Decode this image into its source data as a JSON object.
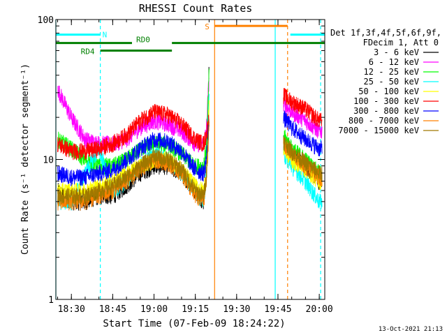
{
  "chart_data": {
    "type": "line",
    "title": "RHESSI Count Rates",
    "xlabel": "Start Time (07-Feb-09 18:24:22)",
    "ylabel": "Count Rate (s⁻¹ detector segment⁻¹)",
    "y_scale": "log",
    "ylim": [
      1,
      100
    ],
    "xlim": [
      "18:24:22",
      "20:02:00"
    ],
    "x_ticks": [
      "18:30",
      "18:45",
      "19:00",
      "19:15",
      "19:30",
      "19:45",
      "20:00"
    ],
    "y_ticks": [
      "1",
      "10",
      "100"
    ],
    "legend_position": "right",
    "legend_header": [
      "Det 1f,3f,4f,5f,6f,9f,",
      "FDecim 1, Att 0"
    ],
    "series": [
      {
        "name": "3 - 6 keV",
        "color": "#000000",
        "x": [
          "18:25",
          "18:30",
          "18:35",
          "18:40",
          "18:45",
          "18:50",
          "18:55",
          "19:00",
          "19:05",
          "19:10",
          "19:15",
          "19:18",
          "19:19",
          "19:20",
          "19:47",
          "19:50",
          "19:55",
          "20:00"
        ],
        "y": [
          6,
          5,
          5,
          5.5,
          5.5,
          6.5,
          8,
          9,
          9,
          8,
          6,
          5,
          9,
          45,
          14,
          11,
          9,
          7
        ]
      },
      {
        "name": "6 - 12 keV",
        "color": "#ff00ff",
        "x": [
          "18:25",
          "18:30",
          "18:35",
          "18:40",
          "18:45",
          "18:50",
          "18:55",
          "19:00",
          "19:05",
          "19:10",
          "19:15",
          "19:18",
          "19:19",
          "19:20",
          "19:47",
          "19:50",
          "19:55",
          "20:00"
        ],
        "y": [
          32,
          20,
          14,
          13,
          13,
          14,
          17,
          19,
          18,
          16,
          13,
          13,
          16,
          40,
          25,
          22,
          19,
          16
        ]
      },
      {
        "name": "12 - 25 keV",
        "color": "#00ff00",
        "x": [
          "18:25",
          "18:30",
          "18:35",
          "18:40",
          "18:45",
          "18:50",
          "18:55",
          "19:00",
          "19:05",
          "19:10",
          "19:15",
          "19:18",
          "19:19",
          "19:20",
          "19:47",
          "19:50",
          "19:55",
          "20:00"
        ],
        "y": [
          14,
          12,
          10,
          9,
          9,
          10,
          12,
          13,
          13,
          11,
          9,
          9,
          12,
          40,
          15,
          12,
          10,
          8
        ]
      },
      {
        "name": "25 - 50 keV",
        "color": "#00ffff",
        "x": [
          "18:25",
          "18:30",
          "18:35",
          "18:40",
          "18:45",
          "18:50",
          "18:55",
          "19:00",
          "19:05",
          "19:10",
          "19:15",
          "19:18",
          "19:19",
          "19:20",
          "19:47",
          "19:50",
          "19:55",
          "20:00"
        ],
        "y": [
          5,
          5,
          8,
          12,
          6,
          7,
          9,
          11,
          10,
          8,
          6,
          5,
          8,
          30,
          11,
          9,
          7,
          5
        ]
      },
      {
        "name": "50 - 100 keV",
        "color": "#ffff00",
        "x": [
          "18:25",
          "18:30",
          "18:35",
          "18:40",
          "18:45",
          "18:50",
          "18:55",
          "19:00",
          "19:05",
          "19:10",
          "19:15",
          "19:18",
          "19:19",
          "19:20",
          "19:47",
          "19:50",
          "19:55",
          "20:00"
        ],
        "y": [
          6,
          6,
          6,
          6.5,
          7,
          8,
          9,
          10,
          10,
          8.5,
          6.5,
          6,
          8,
          25,
          12,
          10,
          8.5,
          7
        ]
      },
      {
        "name": "100 - 300 keV",
        "color": "#ff0000",
        "x": [
          "18:25",
          "18:30",
          "18:35",
          "18:40",
          "18:45",
          "18:50",
          "18:55",
          "19:00",
          "19:05",
          "19:10",
          "19:15",
          "19:18",
          "19:19",
          "19:20",
          "19:47",
          "19:50",
          "19:55",
          "20:00"
        ],
        "y": [
          13,
          11.5,
          11.5,
          12,
          13,
          15,
          19,
          22,
          21,
          18,
          14,
          13,
          15,
          20,
          29,
          26,
          23,
          19
        ]
      },
      {
        "name": "300 - 800 keV",
        "color": "#0000ff",
        "x": [
          "18:25",
          "18:30",
          "18:35",
          "18:40",
          "18:45",
          "18:50",
          "18:55",
          "19:00",
          "19:05",
          "19:10",
          "19:15",
          "19:18",
          "19:19",
          "19:20",
          "19:47",
          "19:50",
          "19:55",
          "20:00"
        ],
        "y": [
          8,
          7.5,
          7.5,
          8,
          8.5,
          10,
          12,
          14,
          13.5,
          11.5,
          8.5,
          8,
          10,
          20,
          20,
          17,
          14,
          12
        ]
      },
      {
        "name": "800 - 7000 keV",
        "color": "#ff8000",
        "x": [
          "18:25",
          "18:30",
          "18:35",
          "18:40",
          "18:45",
          "18:50",
          "18:55",
          "19:00",
          "19:05",
          "19:10",
          "19:15",
          "19:18",
          "19:19",
          "19:20",
          "19:47",
          "19:50",
          "19:55",
          "20:00"
        ],
        "y": [
          5,
          5,
          5,
          5.5,
          6,
          7,
          8.5,
          10,
          9.5,
          8,
          5.5,
          5,
          7,
          18,
          13,
          11,
          9,
          7.5
        ]
      },
      {
        "name": "7000 - 15000 keV",
        "color": "#a07800",
        "x": [
          "18:25",
          "18:30",
          "18:35",
          "18:40",
          "18:45",
          "18:50",
          "18:55",
          "19:00",
          "19:05",
          "19:10",
          "19:15",
          "19:18",
          "19:19",
          "19:20",
          "19:47",
          "19:50",
          "19:55",
          "20:00"
        ],
        "y": [
          5.5,
          5.5,
          5.5,
          6,
          6.5,
          7.5,
          9,
          10.5,
          10,
          8.5,
          6,
          5.5,
          7.5,
          20,
          13.5,
          11.5,
          9.5,
          8
        ]
      }
    ],
    "attenuator_bars": [
      {
        "label": "N",
        "color": "#00ffff",
        "y": 78,
        "segments": [
          [
            "18:24:22",
            "18:40:30"
          ],
          [
            "19:49:30",
            "20:02:00"
          ]
        ]
      },
      {
        "label": "RD0",
        "color": "#008000",
        "y": 68,
        "segments": [
          [
            "18:24:22",
            "18:52:00"
          ],
          [
            "19:06:30",
            "20:02:00"
          ]
        ]
      },
      {
        "label": "RD4",
        "color": "#008000",
        "y": 60,
        "segments": [
          [
            "18:40:30",
            "19:06:30"
          ]
        ]
      },
      {
        "label": "S",
        "color": "#ff8000",
        "y": 90,
        "segments": [
          [
            "19:22:00",
            "19:48:30"
          ]
        ]
      }
    ],
    "vertical_lines": [
      {
        "x": "18:24:22",
        "color": "#00ffff",
        "style": "solid"
      },
      {
        "x": "18:40:30",
        "color": "#00ffff",
        "style": "dashed"
      },
      {
        "x": "19:22:00",
        "color": "#ff8000",
        "style": "solid"
      },
      {
        "x": "19:44:00",
        "color": "#00ffff",
        "style": "solid"
      },
      {
        "x": "19:48:30",
        "color": "#ff8000",
        "style": "dashed"
      },
      {
        "x": "20:00:30",
        "color": "#00ffff",
        "style": "dashed"
      }
    ],
    "gaps": [
      [
        "19:20:00",
        "19:47:00"
      ]
    ]
  },
  "footer": {
    "timestamp": "13-Oct-2021 21:13"
  }
}
